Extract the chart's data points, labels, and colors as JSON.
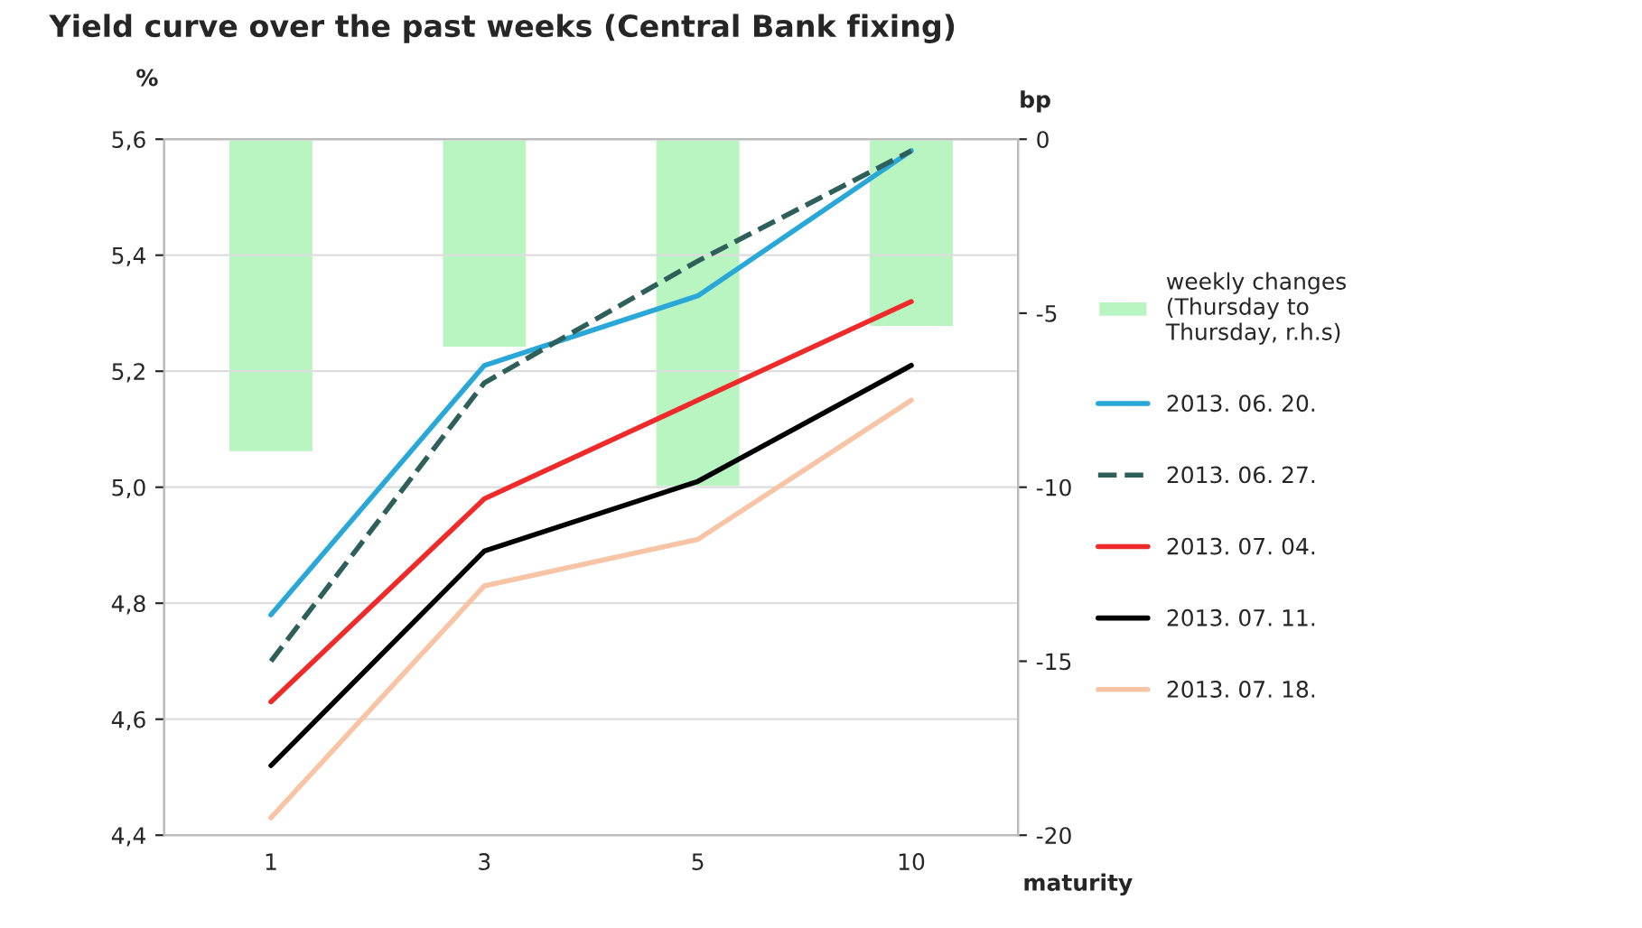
{
  "chart_data": {
    "type": "line",
    "title": "Yield curve over the past weeks (Central Bank fixing)",
    "xlabel": "maturity",
    "ylabel": "%",
    "y2label": "bp",
    "categories": [
      "1",
      "3",
      "5",
      "10"
    ],
    "series": [
      {
        "name": "weekly changes\n(Thursday to\nThursday, r.h.s)",
        "type": "bar",
        "axis": "y2",
        "color": "#b8f5c0",
        "values": [
          -9.0,
          -6.0,
          -10.0,
          -5.4
        ]
      },
      {
        "name": "2013. 06. 20.",
        "color": "#29a8d8",
        "values": [
          4.78,
          5.21,
          5.33,
          5.58
        ]
      },
      {
        "name": "2013. 06. 27.",
        "color": "#2f5f5a",
        "line_style": "dashed",
        "values": [
          4.7,
          5.18,
          5.39,
          5.58
        ]
      },
      {
        "name": "2013. 07. 04.",
        "color": "#ee2a2a",
        "values": [
          4.63,
          4.98,
          5.15,
          5.32
        ]
      },
      {
        "name": "2013. 07. 11.",
        "color": "#000000",
        "values": [
          4.52,
          4.89,
          5.01,
          5.21
        ]
      },
      {
        "name": "2013. 07. 18.",
        "color": "#f7c4a6",
        "values": [
          4.43,
          4.83,
          4.91,
          5.15
        ]
      }
    ],
    "ylim": [
      4.4,
      5.6
    ],
    "yticks": [
      {
        "value": 4.4,
        "label": "4,4"
      },
      {
        "value": 4.6,
        "label": "4,6"
      },
      {
        "value": 4.8,
        "label": "4,8"
      },
      {
        "value": 5.0,
        "label": "5,0"
      },
      {
        "value": 5.2,
        "label": "5,2"
      },
      {
        "value": 5.4,
        "label": "5,4"
      },
      {
        "value": 5.6,
        "label": "5,6"
      }
    ],
    "y2lim": [
      -20,
      0
    ],
    "y2ticks": [
      -20,
      -15,
      -10,
      -5,
      0
    ],
    "grid": "y",
    "legend": "right"
  }
}
